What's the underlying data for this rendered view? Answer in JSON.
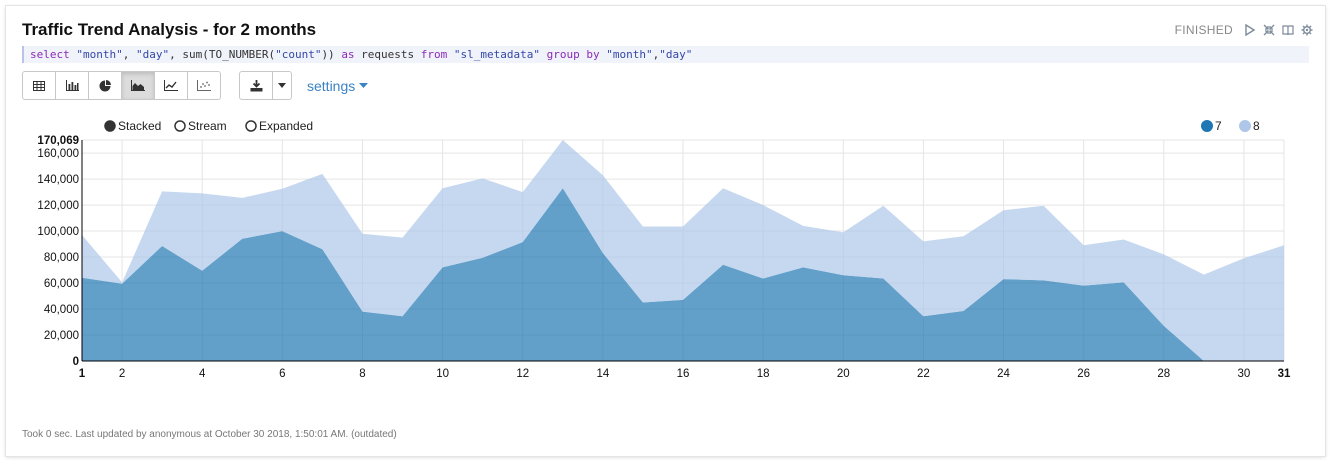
{
  "title": "Traffic Trend Analysis - for 2 months",
  "status": "FINISHED",
  "query": [
    {
      "t": "select",
      "c": "q-kw"
    },
    {
      "t": " ",
      "c": "q-plain"
    },
    {
      "t": "\"month\"",
      "c": "q-str"
    },
    {
      "t": ", ",
      "c": "q-plain"
    },
    {
      "t": "\"day\"",
      "c": "q-str"
    },
    {
      "t": ", ",
      "c": "q-plain"
    },
    {
      "t": "sum(TO_NUMBER(",
      "c": "q-plain"
    },
    {
      "t": "\"count\"",
      "c": "q-str"
    },
    {
      "t": ")) ",
      "c": "q-plain"
    },
    {
      "t": "as",
      "c": "q-kw"
    },
    {
      "t": " requests ",
      "c": "q-plain"
    },
    {
      "t": "from",
      "c": "q-kw"
    },
    {
      "t": " ",
      "c": "q-plain"
    },
    {
      "t": "\"sl_metadata\"",
      "c": "q-str"
    },
    {
      "t": " ",
      "c": "q-plain"
    },
    {
      "t": "group by",
      "c": "q-kw"
    },
    {
      "t": " ",
      "c": "q-plain"
    },
    {
      "t": "\"month\"",
      "c": "q-str"
    },
    {
      "t": ",",
      "c": "q-plain"
    },
    {
      "t": "\"day\"",
      "c": "q-str"
    }
  ],
  "toolbar": {
    "view_buttons": [
      {
        "name": "table-view-button",
        "icon": "table-icon"
      },
      {
        "name": "bar-chart-view-button",
        "icon": "bar-chart-icon"
      },
      {
        "name": "pie-chart-view-button",
        "icon": "pie-chart-icon"
      },
      {
        "name": "area-chart-view-button",
        "icon": "area-chart-icon",
        "active": true
      },
      {
        "name": "line-chart-view-button",
        "icon": "line-chart-icon"
      },
      {
        "name": "scatter-chart-view-button",
        "icon": "scatter-chart-icon"
      }
    ],
    "settings_label": "settings"
  },
  "chart_data": {
    "type": "area",
    "stacked": true,
    "style_options": [
      "Stacked",
      "Stream",
      "Expanded"
    ],
    "selected_style": "Stacked",
    "x": [
      1,
      2,
      3,
      4,
      5,
      6,
      7,
      8,
      9,
      10,
      11,
      12,
      13,
      14,
      15,
      16,
      17,
      18,
      19,
      20,
      21,
      22,
      23,
      24,
      25,
      26,
      27,
      28,
      29,
      30,
      31
    ],
    "x_tick_labels": [
      "1",
      "2",
      "4",
      "6",
      "8",
      "10",
      "12",
      "14",
      "16",
      "18",
      "20",
      "22",
      "24",
      "26",
      "28",
      "30",
      "31"
    ],
    "y_tick_labels": [
      "0",
      "20,000",
      "40,000",
      "60,000",
      "80,000",
      "100,000",
      "120,000",
      "140,000",
      "160,000",
      "170,069"
    ],
    "ylim": [
      0,
      170069
    ],
    "series": [
      {
        "name": "7",
        "color": "#1f77b4",
        "values": [
          64000,
          59500,
          88500,
          69500,
          94000,
          100000,
          86000,
          38000,
          34500,
          72000,
          79500,
          91500,
          133000,
          83000,
          45000,
          47000,
          74000,
          63500,
          72000,
          66000,
          63500,
          34500,
          38500,
          63000,
          62000,
          58000,
          60500,
          27000,
          0,
          0,
          0
        ]
      },
      {
        "name": "8",
        "color": "#aec7e8",
        "values": [
          33000,
          1000,
          42000,
          59500,
          31500,
          32500,
          58000,
          60000,
          60500,
          61000,
          61000,
          38500,
          37069,
          60000,
          58500,
          56500,
          59000,
          56500,
          32000,
          33000,
          56000,
          57500,
          57500,
          53000,
          57500,
          31000,
          33000,
          55000,
          66500,
          79000,
          89000
        ]
      }
    ],
    "legend": [
      "7",
      "8"
    ],
    "legend_placement": "top-right",
    "grid": true
  },
  "footer": "Took 0 sec. Last updated by anonymous at October 30 2018, 1:50:01 AM. (outdated)"
}
